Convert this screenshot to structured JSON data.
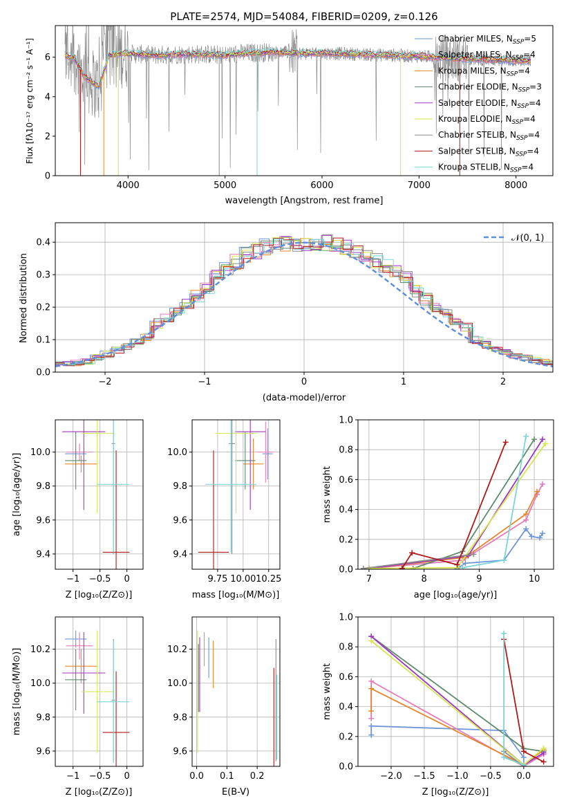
{
  "colors": {
    "chabrier_miles": "#6e95d9",
    "salpeter_miles": "#e67ab9",
    "kroupa_miles": "#e6862c",
    "chabrier_elodie": "#5e8a6e",
    "salpeter_elodie": "#9b36c0",
    "kroupa_elodie": "#d6e64a",
    "chabrier_stelib": "#8a8a8a",
    "salpeter_stelib": "#b01818",
    "kroupa_stelib": "#7ad6d6",
    "normal_fit": "#5f8fd9"
  },
  "chart_data": [
    {
      "id": "spectrum",
      "type": "line",
      "title": "PLATE=2574, MJD=54084, FIBERID=0209, z=0.126",
      "xlabel": "wavelength [Angstrom, rest frame]",
      "ylabel": "Flux [fλ10⁻¹⁷ erg cm⁻² s⁻¹ A⁻¹]",
      "xlim": [
        3250,
        8380
      ],
      "ylim": [
        0,
        7.6
      ],
      "xticks": [
        4000,
        5000,
        6000,
        7000,
        8000
      ],
      "yticks": [
        0,
        2,
        4,
        6
      ],
      "grid": false,
      "legend_position": "top-right",
      "legend": [
        "Chabrier MILES, N_SSP=5",
        "Salpeter MILES, N_SSP=4",
        "Kroupa MILES, N_SSP=4",
        "Chabrier ELODIE, N_SSP=3",
        "Salpeter ELODIE, N_SSP=4",
        "Kroupa ELODIE, N_SSP=4",
        "Chabrier STELIB, N_SSP=4",
        "Salpeter STELIB, N_SSP=4",
        "Kroupa STELIB, N_SSP=4"
      ],
      "continuum": {
        "x": [
          3350,
          3450,
          3550,
          3700,
          3800,
          3950,
          4100,
          4300,
          4500,
          4800,
          5000,
          5200,
          5500,
          5800,
          6100,
          6400,
          6700,
          7000,
          7300,
          7600,
          7900,
          8150
        ],
        "y": [
          6.1,
          5.95,
          5.0,
          4.5,
          6.1,
          6.2,
          6.15,
          6.1,
          6.15,
          6.15,
          6.1,
          6.2,
          6.25,
          6.2,
          6.2,
          6.15,
          6.1,
          6.05,
          5.95,
          5.9,
          5.85,
          5.8
        ]
      }
    },
    {
      "id": "residuals",
      "type": "histogram",
      "xlabel": "(data-model)/error",
      "ylabel": "Normed distribution",
      "xlim": [
        -2.5,
        2.5
      ],
      "ylim": [
        0,
        0.46
      ],
      "xticks": [
        -2,
        -1,
        0,
        1,
        2
      ],
      "yticks": [
        0.0,
        0.1,
        0.2,
        0.3,
        0.4
      ],
      "grid": true,
      "legend": [
        "𝒩(0, 1)"
      ],
      "legend_position": "top-right",
      "bin_width": 0.1,
      "mean_profile": [
        0.025,
        0.026,
        0.028,
        0.032,
        0.038,
        0.046,
        0.055,
        0.066,
        0.08,
        0.096,
        0.11,
        0.128,
        0.15,
        0.17,
        0.19,
        0.21,
        0.235,
        0.26,
        0.28,
        0.3,
        0.32,
        0.34,
        0.36,
        0.375,
        0.385,
        0.39,
        0.393,
        0.395,
        0.397,
        0.4,
        0.398,
        0.4,
        0.395,
        0.39,
        0.385,
        0.375,
        0.36,
        0.345,
        0.33,
        0.31,
        0.29,
        0.27,
        0.25,
        0.225,
        0.2,
        0.18,
        0.16,
        0.14,
        0.12,
        0.1,
        0.085,
        0.07,
        0.06,
        0.05,
        0.045,
        0.04,
        0.036,
        0.032,
        0.028,
        0.025
      ]
    },
    {
      "id": "age-vs-Z",
      "type": "errorbar",
      "xlabel": "Z [log₁₀(Z/Z⊙)]",
      "ylabel": "age  [log₁₀(age/yr)]",
      "xlim": [
        -1.33,
        0.3
      ],
      "ylim": [
        9.31,
        10.19
      ],
      "xticks": [
        -1,
        -0.5,
        0
      ],
      "xtick_labels": [
        "−1",
        "−0.5",
        "0"
      ],
      "yticks": [
        9.4,
        9.6,
        9.8,
        10.0
      ],
      "grid": true,
      "points": [
        {
          "key": "chabrier_miles",
          "x": -0.95,
          "xerr": 0.2,
          "y": 9.99,
          "yerr": 0.03
        },
        {
          "key": "salpeter_miles",
          "x": -0.88,
          "xerr": 0.25,
          "y": 10.0,
          "yerr": 0.05
        },
        {
          "key": "kroupa_miles",
          "x": -0.85,
          "xerr": 0.3,
          "y": 9.93,
          "yerr": 0.05
        },
        {
          "key": "chabrier_elodie",
          "x": -0.95,
          "xerr": 0.2,
          "y": 9.95,
          "yerr": 0.17
        },
        {
          "key": "salpeter_elodie",
          "x": -0.8,
          "xerr": 0.4,
          "y": 10.12,
          "yerr": 0.46
        },
        {
          "key": "kroupa_elodie",
          "x": -0.55,
          "xerr": 0.3,
          "y": 10.11,
          "yerr": 0.47
        },
        {
          "key": "chabrier_stelib",
          "x": -0.25,
          "xerr": 0.03,
          "y": 10.05,
          "yerr": 0.65
        },
        {
          "key": "salpeter_stelib",
          "x": -0.2,
          "xerr": 0.25,
          "y": 9.41,
          "yerr": 0.6
        },
        {
          "key": "kroupa_stelib",
          "x": -0.25,
          "xerr": 0.3,
          "y": 9.81,
          "yerr": 0.4
        }
      ]
    },
    {
      "id": "age-vs-mass",
      "type": "errorbar",
      "xlabel": "mass [log₁₀(M/M⊙)]",
      "ylabel": "",
      "xlim": [
        9.5,
        10.36
      ],
      "ylim": [
        9.31,
        10.19
      ],
      "xticks": [
        9.75,
        10.0,
        10.25
      ],
      "xtick_labels": [
        "9.75",
        "10.00",
        "10.25"
      ],
      "yticks": [
        9.4,
        9.6,
        9.8,
        10.0
      ],
      "grid": true,
      "points": [
        {
          "key": "chabrier_miles",
          "x": 10.24,
          "xerr": 0.05,
          "y": 9.99,
          "yerr": 0.15
        },
        {
          "key": "salpeter_miles",
          "x": 10.22,
          "xerr": 0.08,
          "y": 10.0,
          "yerr": 0.18
        },
        {
          "key": "kroupa_miles",
          "x": 10.1,
          "xerr": 0.1,
          "y": 9.93,
          "yerr": 0.15
        },
        {
          "key": "chabrier_elodie",
          "x": 10.02,
          "xerr": 0.1,
          "y": 9.95,
          "yerr": 0.17
        },
        {
          "key": "salpeter_elodie",
          "x": 10.07,
          "xerr": 0.15,
          "y": 10.12,
          "yerr": 0.46
        },
        {
          "key": "kroupa_elodie",
          "x": 9.93,
          "xerr": 0.2,
          "y": 10.11,
          "yerr": 0.47
        },
        {
          "key": "chabrier_stelib",
          "x": 9.89,
          "xerr": 0.03,
          "y": 10.05,
          "yerr": 0.65
        },
        {
          "key": "salpeter_stelib",
          "x": 9.71,
          "xerr": 0.15,
          "y": 9.41,
          "yerr": 0.6
        },
        {
          "key": "kroupa_stelib",
          "x": 9.88,
          "xerr": 0.25,
          "y": 9.81,
          "yerr": 0.4
        }
      ]
    },
    {
      "id": "weight-vs-age",
      "type": "line",
      "xlabel": "age  [log₁₀(age/yr)]",
      "ylabel": "mass weight",
      "xlim": [
        6.8,
        10.35
      ],
      "ylim": [
        0,
        1.0
      ],
      "xticks": [
        7,
        8,
        9,
        10
      ],
      "yticks": [
        0.0,
        0.2,
        0.4,
        0.6,
        0.8,
        1.0
      ],
      "grid": true,
      "series": [
        {
          "key": "chabrier_miles",
          "x": [
            8.6,
            8.75,
            9.45,
            9.85,
            9.95,
            10.1,
            10.15
          ],
          "y": [
            0.005,
            0.04,
            0.06,
            0.27,
            0.22,
            0.21,
            0.24
          ]
        },
        {
          "key": "salpeter_miles",
          "x": [
            7.0,
            8.7,
            9.85,
            10.05,
            10.15
          ],
          "y": [
            0.005,
            0.06,
            0.33,
            0.5,
            0.57
          ]
        },
        {
          "key": "kroupa_miles",
          "x": [
            7.0,
            8.75,
            9.85,
            10.05
          ],
          "y": [
            0.005,
            0.08,
            0.37,
            0.52
          ]
        },
        {
          "key": "chabrier_elodie",
          "x": [
            7.8,
            8.7,
            10.0
          ],
          "y": [
            0.005,
            0.12,
            0.87
          ]
        },
        {
          "key": "salpeter_elodie",
          "x": [
            7.0,
            8.8,
            10.15
          ],
          "y": [
            0.005,
            0.09,
            0.87
          ]
        },
        {
          "key": "kroupa_elodie",
          "x": [
            7.0,
            8.6,
            10.2
          ],
          "y": [
            0.005,
            0.01,
            0.84
          ]
        },
        {
          "key": "chabrier_stelib",
          "x": [
            6.9,
            8.9
          ],
          "y": [
            0.005,
            0.1
          ]
        },
        {
          "key": "salpeter_stelib",
          "x": [
            7.6,
            7.78,
            8.6,
            9.48
          ],
          "y": [
            0.005,
            0.11,
            0.03,
            0.85
          ]
        },
        {
          "key": "kroupa_stelib",
          "x": [
            8.7,
            9.45,
            9.85
          ],
          "y": [
            0.01,
            0.06,
            0.89
          ]
        }
      ]
    },
    {
      "id": "mass-vs-Z",
      "type": "errorbar",
      "xlabel": "Z [log₁₀(Z/Z⊙)]",
      "ylabel": "mass [log₁₀(M/M⊙)]",
      "xlim": [
        -1.33,
        0.3
      ],
      "ylim": [
        9.51,
        10.39
      ],
      "xticks": [
        -1,
        -0.5,
        0
      ],
      "xtick_labels": [
        "−1",
        "−0.5",
        "0"
      ],
      "yticks": [
        9.6,
        9.8,
        10.0,
        10.2
      ],
      "grid": true,
      "points": [
        {
          "key": "chabrier_miles",
          "x": -0.95,
          "xerr": 0.2,
          "y": 10.26,
          "yerr": 0.05
        },
        {
          "key": "salpeter_miles",
          "x": -0.88,
          "xerr": 0.25,
          "y": 10.22,
          "yerr": 0.08
        },
        {
          "key": "kroupa_miles",
          "x": -0.85,
          "xerr": 0.3,
          "y": 10.1,
          "yerr": 0.1
        },
        {
          "key": "chabrier_elodie",
          "x": -0.95,
          "xerr": 0.2,
          "y": 10.02,
          "yerr": 0.18
        },
        {
          "key": "salpeter_elodie",
          "x": -0.8,
          "xerr": 0.4,
          "y": 10.06,
          "yerr": 0.24
        },
        {
          "key": "kroupa_elodie",
          "x": -0.55,
          "xerr": 0.3,
          "y": 9.95,
          "yerr": 0.36
        },
        {
          "key": "chabrier_stelib",
          "x": -0.25,
          "xerr": 0.03,
          "y": 9.9,
          "yerr": 0.36
        },
        {
          "key": "salpeter_stelib",
          "x": -0.2,
          "xerr": 0.25,
          "y": 9.71,
          "yerr": 0.36
        },
        {
          "key": "kroupa_stelib",
          "x": -0.25,
          "xerr": 0.3,
          "y": 9.89,
          "yerr": 0.36
        }
      ]
    },
    {
      "id": "mass-vs-EBV",
      "type": "errorbar",
      "xlabel": "E(B-V)",
      "ylabel": "",
      "xlim": [
        -0.015,
        0.275
      ],
      "ylim": [
        9.51,
        10.39
      ],
      "xticks": [
        0.0,
        0.1,
        0.2
      ],
      "xtick_labels": [
        "0.0",
        "0.1",
        "0.2"
      ],
      "yticks": [
        9.6,
        9.8,
        10.0,
        10.2
      ],
      "grid": true,
      "points": [
        {
          "key": "chabrier_miles",
          "x": 0.04,
          "xerr": 0.0,
          "y": 10.15,
          "yerr": 0.12
        },
        {
          "key": "salpeter_miles",
          "x": 0.025,
          "xerr": 0.0,
          "y": 10.2,
          "yerr": 0.1
        },
        {
          "key": "kroupa_miles",
          "x": 0.055,
          "xerr": 0.0,
          "y": 10.11,
          "yerr": 0.14
        },
        {
          "key": "chabrier_elodie",
          "x": 0.006,
          "xerr": 0.0,
          "y": 10.03,
          "yerr": 0.2
        },
        {
          "key": "salpeter_elodie",
          "x": 0.01,
          "xerr": 0.0,
          "y": 10.05,
          "yerr": 0.22
        },
        {
          "key": "kroupa_elodie",
          "x": 0.003,
          "xerr": 0.0,
          "y": 9.95,
          "yerr": 0.36
        },
        {
          "key": "chabrier_stelib",
          "x": 0.262,
          "xerr": 0.0,
          "y": 9.9,
          "yerr": 0.36
        },
        {
          "key": "salpeter_stelib",
          "x": 0.255,
          "xerr": 0.0,
          "y": 9.75,
          "yerr": 0.34
        },
        {
          "key": "kroupa_stelib",
          "x": 0.265,
          "xerr": 0.0,
          "y": 9.8,
          "yerr": 0.25
        }
      ]
    },
    {
      "id": "weight-vs-Z",
      "type": "line",
      "xlabel": "Z [log₁₀(Z/Z⊙)]",
      "ylabel": "mass weight",
      "xlim": [
        -2.5,
        0.45
      ],
      "ylim": [
        0,
        1.0
      ],
      "xticks": [
        -2.0,
        -1.5,
        -1.0,
        -0.5,
        0.0
      ],
      "xtick_labels": [
        "−2.0",
        "−1.5",
        "−1.0",
        "−0.5",
        "0.0"
      ],
      "yticks": [
        0.0,
        0.2,
        0.4,
        0.6,
        0.8,
        1.0
      ],
      "grid": true,
      "series": [
        {
          "key": "chabrier_miles",
          "x": [
            -2.3,
            -2.3,
            -0.3,
            0.0,
            0.0
          ],
          "y": [
            0.21,
            0.27,
            0.24,
            0.06,
            0.0
          ]
        },
        {
          "key": "salpeter_miles",
          "x": [
            -2.3,
            -2.3,
            0.0,
            0.3,
            0.3
          ],
          "y": [
            0.32,
            0.57,
            0.0,
            0.08,
            0.11
          ]
        },
        {
          "key": "kroupa_miles",
          "x": [
            -2.3,
            -2.3,
            0.0,
            0.3
          ],
          "y": [
            0.37,
            0.52,
            0.01,
            0.11
          ]
        },
        {
          "key": "chabrier_elodie",
          "x": [
            -2.3,
            0.0,
            0.3
          ],
          "y": [
            0.87,
            0.12,
            0.1
          ]
        },
        {
          "key": "salpeter_elodie",
          "x": [
            -2.3,
            0.0,
            0.3
          ],
          "y": [
            0.87,
            0.01,
            0.09
          ]
        },
        {
          "key": "kroupa_elodie",
          "x": [
            -2.3,
            0.0,
            0.3
          ],
          "y": [
            0.84,
            0.01,
            0.12
          ]
        },
        {
          "key": "chabrier_stelib",
          "x": [
            -0.3,
            0.0
          ],
          "y": [
            0.1,
            0.0
          ]
        },
        {
          "key": "salpeter_stelib",
          "x": [
            -0.3,
            0.0,
            0.3
          ],
          "y": [
            0.85,
            0.1,
            0.03
          ]
        },
        {
          "key": "kroupa_stelib",
          "x": [
            -0.3,
            -0.3,
            0.0
          ],
          "y": [
            0.89,
            0.06,
            0.01
          ]
        }
      ]
    }
  ]
}
